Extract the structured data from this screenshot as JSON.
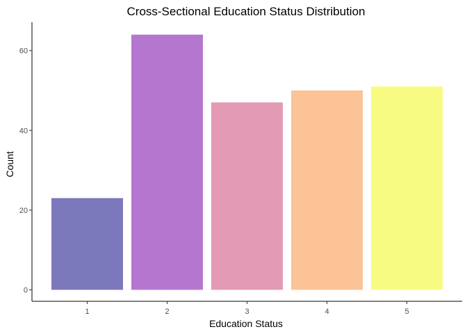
{
  "chart_data": {
    "type": "bar",
    "title": "Cross-Sectional Education Status Distribution",
    "xlabel": "Education Status",
    "ylabel": "Count",
    "categories": [
      "1",
      "2",
      "3",
      "4",
      "5"
    ],
    "values": [
      23,
      64,
      47,
      50,
      51
    ],
    "colors": [
      "#7b78bb",
      "#b576cf",
      "#e39ab5",
      "#fbc396",
      "#f7fb81"
    ],
    "yticks": [
      0,
      20,
      40,
      60
    ],
    "ylim": [
      0,
      67.2
    ],
    "grid": false,
    "legend": "none"
  }
}
